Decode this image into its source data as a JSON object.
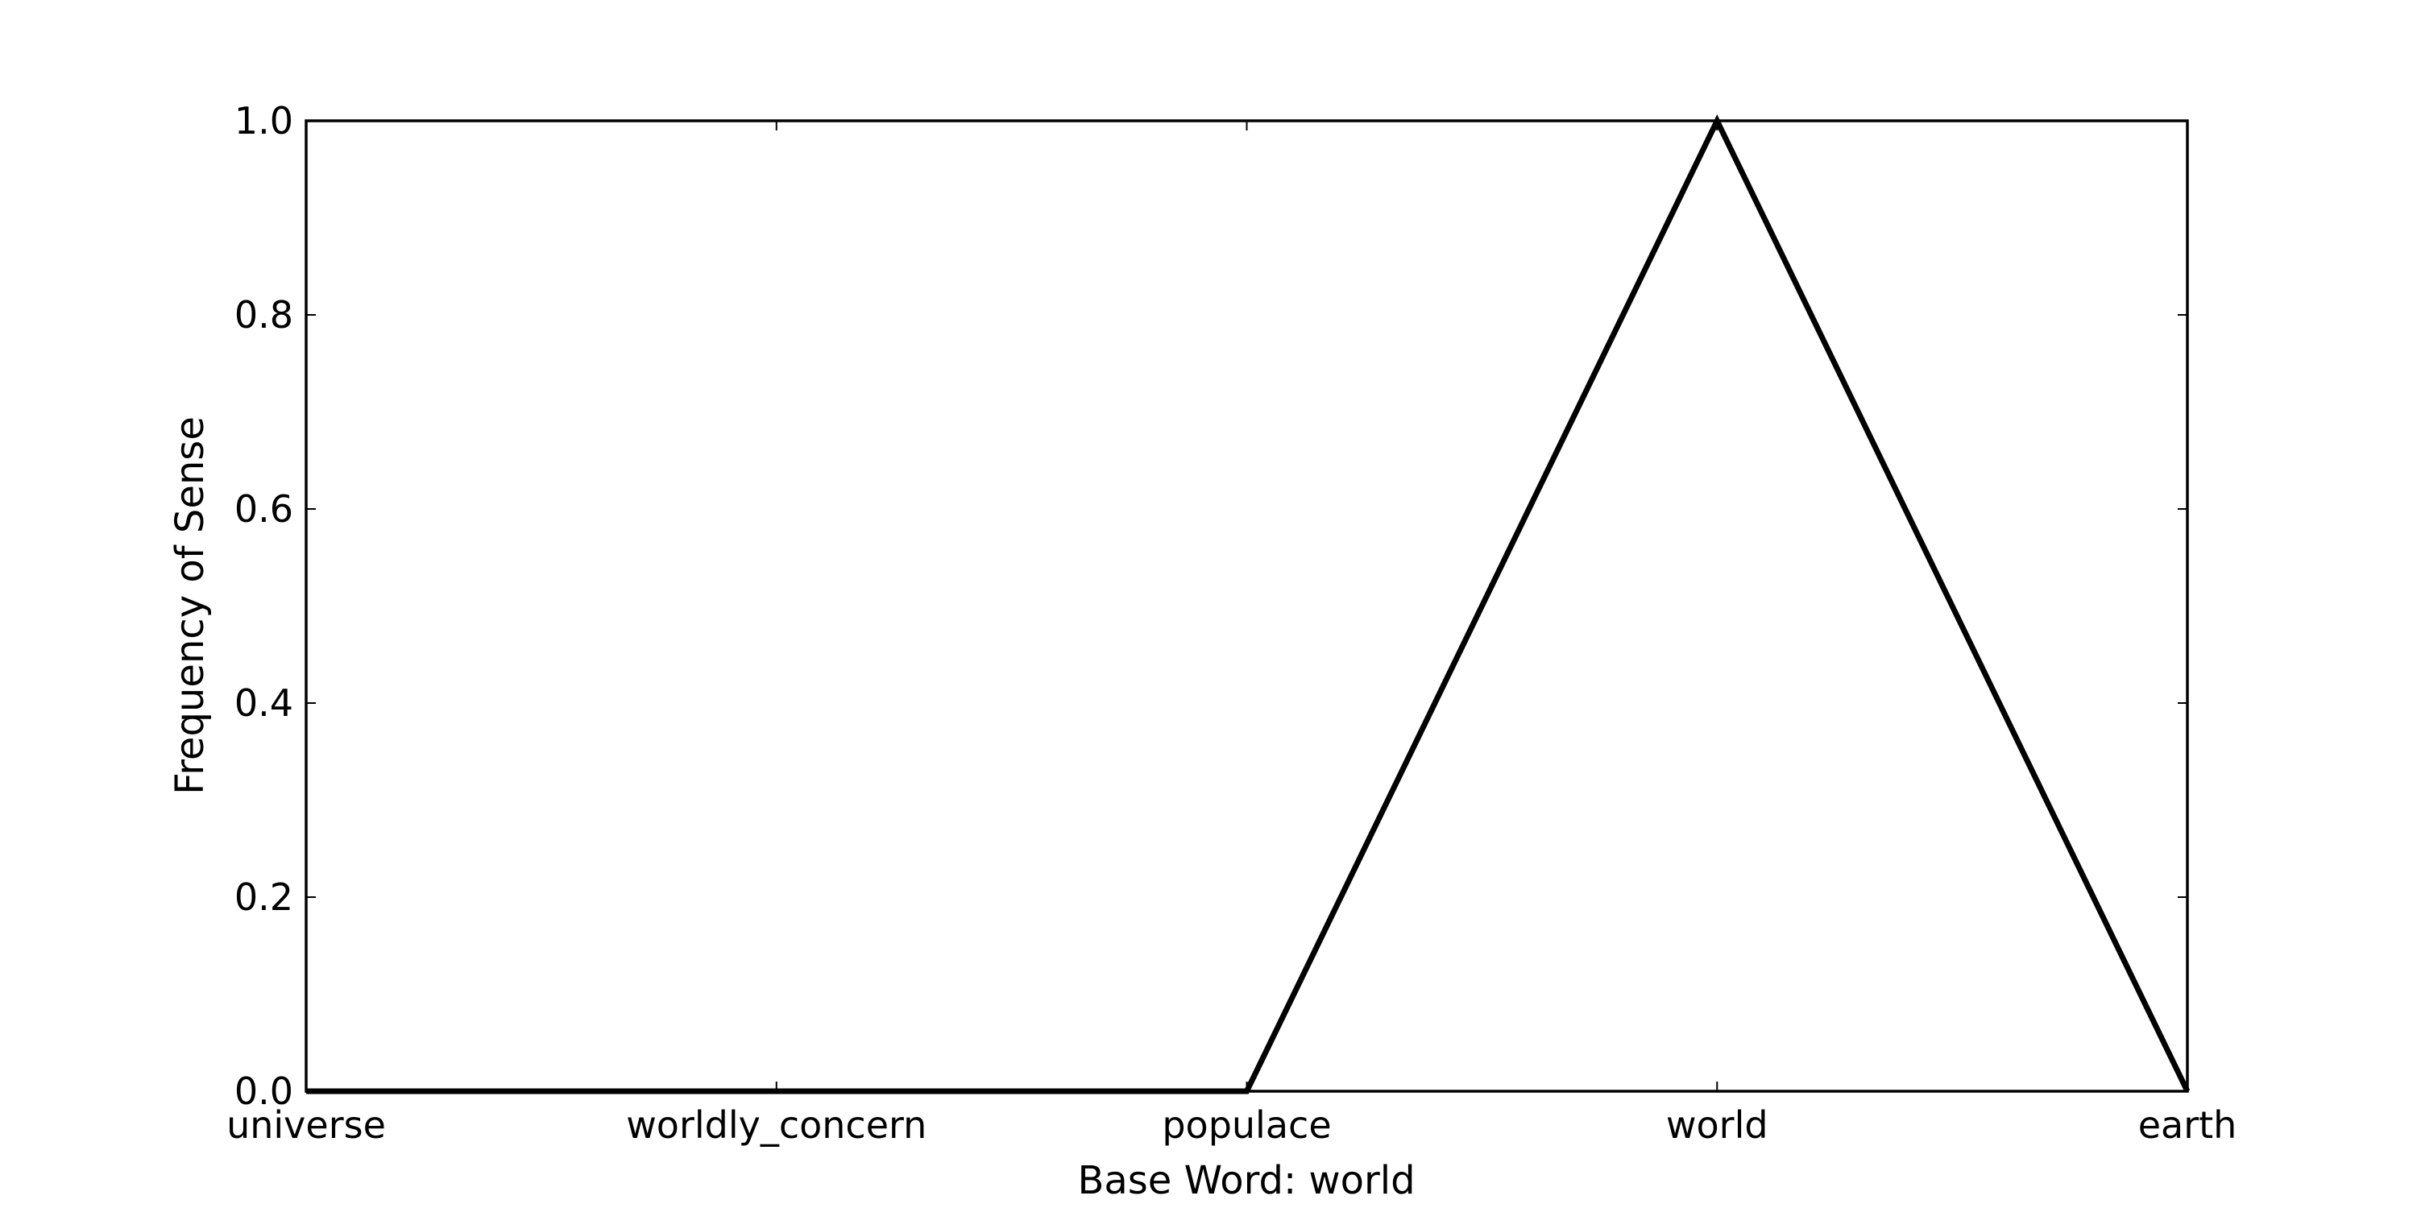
{
  "chart_data": {
    "type": "line",
    "categories": [
      "universe",
      "worldly_concern",
      "populace",
      "world",
      "earth"
    ],
    "series": [
      {
        "values": [
          0.0,
          0.0,
          0.0,
          1.0,
          0.0
        ]
      }
    ],
    "title": "",
    "xlabel": "Base Word: world",
    "ylabel": "Frequency of Sense",
    "ylim": [
      0.0,
      1.0
    ],
    "yticks": [
      "0.0",
      "0.2",
      "0.4",
      "0.6",
      "0.8",
      "1.0"
    ],
    "grid": false,
    "line_color": "#000000"
  }
}
